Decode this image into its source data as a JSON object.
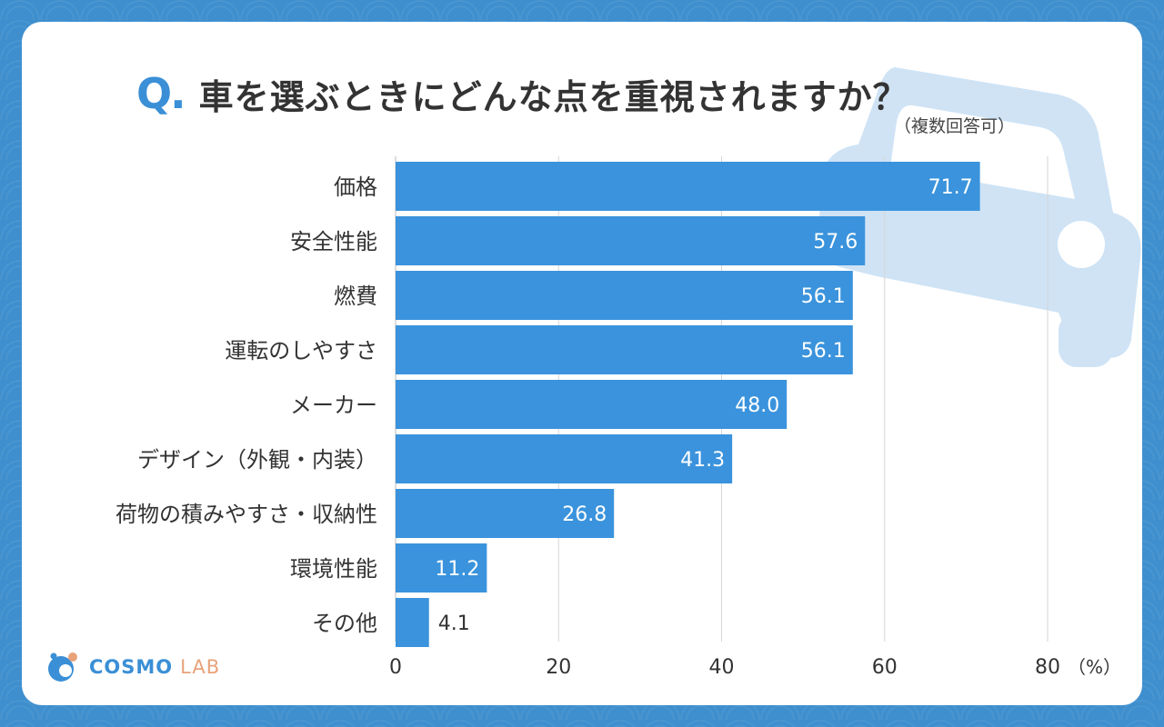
{
  "title": {
    "q_mark": "Q.",
    "text": "車を選ぶときにどんな点を重視されますか？",
    "note": "（複数回答可）"
  },
  "logo": {
    "brand": "COSMO",
    "suffix": "LAB"
  },
  "colors": {
    "bar": "#3a93dc",
    "background": "#3f8fce",
    "car": "#cfe3f5"
  },
  "chart_data": {
    "type": "bar",
    "orientation": "horizontal",
    "categories": [
      "価格",
      "安全性能",
      "燃費",
      "運転のしやすさ",
      "メーカー",
      "デザイン（外観・内装）",
      "荷物の積みやすさ・収納性",
      "環境性能",
      "その他"
    ],
    "values": [
      71.7,
      57.6,
      56.1,
      56.1,
      48.0,
      41.3,
      26.8,
      11.2,
      4.1
    ],
    "labels": [
      "71.7",
      "57.6",
      "56.1",
      "56.1",
      "48.0",
      "41.3",
      "26.8",
      "11.2",
      "4.1"
    ],
    "xlim": [
      0,
      80
    ],
    "ticks": [
      "0",
      "20",
      "40",
      "60",
      "80"
    ],
    "unit": "（%）",
    "grid": true
  }
}
